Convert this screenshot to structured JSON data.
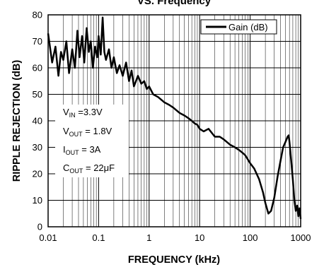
{
  "chart_data": {
    "type": "line",
    "title": "VS. Frequency",
    "xlabel": "FREQUENCY (kHz)",
    "ylabel": "RIPPLE REJECTION (dB)",
    "x_scale": "log",
    "xlim": [
      0.01,
      1000
    ],
    "ylim": [
      0,
      80
    ],
    "x_ticks": [
      "0.01",
      "0.1",
      "1",
      "10",
      "100",
      "1000"
    ],
    "y_ticks": [
      "0",
      "10",
      "20",
      "30",
      "40",
      "50",
      "60",
      "70",
      "80"
    ],
    "grid": true,
    "legend_position": "top-right",
    "series": [
      {
        "name": "Gain (dB)",
        "x": [
          0.01,
          0.012,
          0.014,
          0.016,
          0.018,
          0.02,
          0.023,
          0.026,
          0.03,
          0.034,
          0.038,
          0.042,
          0.047,
          0.052,
          0.058,
          0.064,
          0.07,
          0.077,
          0.085,
          0.094,
          0.1,
          0.11,
          0.12,
          0.13,
          0.14,
          0.16,
          0.18,
          0.2,
          0.23,
          0.26,
          0.3,
          0.35,
          0.4,
          0.45,
          0.5,
          0.6,
          0.7,
          0.8,
          0.9,
          1,
          1.2,
          1.5,
          2,
          2.5,
          3,
          4,
          5,
          6,
          7,
          8,
          9,
          10,
          12,
          15,
          20,
          25,
          30,
          40,
          50,
          60,
          70,
          80,
          100,
          120,
          150,
          180,
          200,
          230,
          260,
          300,
          350,
          400,
          450,
          500,
          550,
          580,
          600,
          650,
          700,
          750,
          800,
          850,
          900,
          950,
          1000
        ],
        "y": [
          73,
          62,
          68,
          57,
          66,
          63,
          70,
          58,
          67,
          60,
          74,
          64,
          72,
          62,
          75,
          66,
          70,
          60,
          68,
          64,
          72,
          65,
          79,
          66,
          63,
          67,
          60,
          64,
          58,
          61,
          57,
          62,
          55,
          59,
          53,
          57,
          54,
          55,
          52,
          53,
          50,
          49,
          47,
          46,
          45,
          43,
          42,
          41,
          40,
          39,
          38.5,
          37,
          36,
          37,
          34,
          34,
          33,
          31,
          30,
          29,
          28,
          27,
          24,
          22,
          18,
          13,
          9,
          5,
          6,
          11,
          19,
          25,
          30,
          32,
          34,
          34.5,
          32,
          25,
          18,
          10,
          6,
          8,
          4,
          7,
          3
        ]
      }
    ],
    "annotations": [
      {
        "base": "V",
        "sub": "IN",
        "rest": " =3.3V"
      },
      {
        "base": "V",
        "sub": "OUT",
        "rest": " = 1.8V"
      },
      {
        "base": "I",
        "sub": "OUT",
        "rest": " = 3A"
      },
      {
        "base": "C",
        "sub": "OUT",
        "rest": " = 22μF"
      }
    ]
  }
}
